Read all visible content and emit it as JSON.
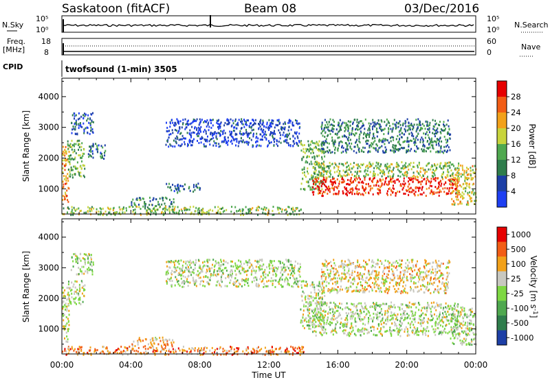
{
  "header": {
    "station": "Saskatoon (fitACF)",
    "beam": "Beam 08",
    "date": "03/Dec/2016"
  },
  "noise_panel": {
    "left_label": "N.Sky",
    "right_label": "N.Search",
    "ticks_left": [
      "10^5",
      "10^0"
    ],
    "ticks_right": [
      "10^5",
      "10^0"
    ]
  },
  "freq_panel": {
    "left_label": "Freq.",
    "left_unit": "[MHz]",
    "right_label": "Nave",
    "ticks_left": [
      "18",
      "8"
    ],
    "ticks_right": [
      "60",
      "0"
    ]
  },
  "cpid_panel": {
    "label": "CPID",
    "program": "twofsound (1-min) 3505"
  },
  "chart_data": [
    {
      "type": "heatmap",
      "title": "",
      "ylabel": "Slant Range [km]",
      "xlabel": "Time UT",
      "x_ticks": [
        "00:00",
        "04:00",
        "08:00",
        "12:00",
        "16:00",
        "20:00",
        "00:00"
      ],
      "y_ticks": [
        1000,
        2000,
        3000,
        4000
      ],
      "ylim": [
        180,
        4600
      ],
      "xlim_hours": [
        0,
        24
      ],
      "colorbar": {
        "label": "Power [dB]",
        "ticks": [
          "4",
          "8",
          "12",
          "16",
          "20",
          "24",
          "28"
        ],
        "colors": [
          "#1e3ff2",
          "#1d3fa6",
          "#2f7d4c",
          "#4fa84f",
          "#c8d43c",
          "#f2a11a",
          "#f25d15",
          "#e60000"
        ]
      },
      "regions": [
        {
          "t": [
            0.0,
            0.4
          ],
          "r": [
            600,
            2400
          ],
          "level": 0.72
        },
        {
          "t": [
            0.3,
            1.3
          ],
          "r": [
            1400,
            2600
          ],
          "level": 0.45
        },
        {
          "t": [
            0.5,
            1.8
          ],
          "r": [
            2800,
            3500
          ],
          "level": 0.18
        },
        {
          "t": [
            1.5,
            2.5
          ],
          "r": [
            2000,
            2500
          ],
          "level": 0.25
        },
        {
          "t": [
            4.0,
            6.5
          ],
          "r": [
            450,
            750
          ],
          "level": 0.35
        },
        {
          "t": [
            6.0,
            8.0
          ],
          "r": [
            900,
            1200
          ],
          "level": 0.25
        },
        {
          "t": [
            6.0,
            13.8
          ],
          "r": [
            2400,
            3300
          ],
          "level": 0.12
        },
        {
          "t": [
            13.8,
            15.2
          ],
          "r": [
            1000,
            2600
          ],
          "level": 0.45
        },
        {
          "t": [
            14.5,
            23.0
          ],
          "r": [
            800,
            1400
          ],
          "level": 0.9
        },
        {
          "t": [
            14.5,
            23.0
          ],
          "r": [
            1400,
            1900
          ],
          "level": 0.5
        },
        {
          "t": [
            15.0,
            22.5
          ],
          "r": [
            2200,
            3300
          ],
          "level": 0.3
        },
        {
          "t": [
            22.5,
            24.0
          ],
          "r": [
            500,
            1800
          ],
          "level": 0.6
        },
        {
          "t": [
            0.0,
            14.0
          ],
          "r": [
            180,
            450
          ],
          "level": 0.5
        }
      ]
    },
    {
      "type": "heatmap",
      "title": "",
      "ylabel": "Slant Range [km]",
      "xlabel": "Time UT",
      "x_ticks": [
        "00:00",
        "04:00",
        "08:00",
        "12:00",
        "16:00",
        "20:00",
        "00:00"
      ],
      "y_ticks": [
        1000,
        2000,
        3000,
        4000
      ],
      "ylim": [
        180,
        4600
      ],
      "xlim_hours": [
        0,
        24
      ],
      "colorbar": {
        "label": "Velocity [m s^-1]",
        "ticks": [
          "1000",
          "500",
          "100",
          "25",
          "-25",
          "-100",
          "-500",
          "-1000"
        ],
        "colors": [
          "#1d3fa6",
          "#2f7d4c",
          "#4fa84f",
          "#7ed843",
          "#c8c8c0",
          "#f2a11a",
          "#f25d15",
          "#e60000"
        ]
      },
      "regions": [
        {
          "t": [
            0.0,
            0.4
          ],
          "r": [
            600,
            2400
          ],
          "level": 0.55
        },
        {
          "t": [
            0.3,
            1.3
          ],
          "r": [
            1800,
            2600
          ],
          "level": 0.5
        },
        {
          "t": [
            0.5,
            1.8
          ],
          "r": [
            2800,
            3500
          ],
          "level": 0.5
        },
        {
          "t": [
            4.0,
            6.5
          ],
          "r": [
            450,
            750
          ],
          "level": 0.65
        },
        {
          "t": [
            6.0,
            13.8
          ],
          "r": [
            2400,
            3300
          ],
          "level": 0.5
        },
        {
          "t": [
            13.8,
            15.2
          ],
          "r": [
            1000,
            2600
          ],
          "level": 0.5
        },
        {
          "t": [
            14.5,
            23.0
          ],
          "r": [
            800,
            1900
          ],
          "level": 0.5
        },
        {
          "t": [
            15.0,
            22.5
          ],
          "r": [
            2200,
            3300
          ],
          "level": 0.6
        },
        {
          "t": [
            22.5,
            24.0
          ],
          "r": [
            500,
            1800
          ],
          "level": 0.5
        },
        {
          "t": [
            0.0,
            14.0
          ],
          "r": [
            180,
            450
          ],
          "level": 0.75
        }
      ]
    }
  ]
}
